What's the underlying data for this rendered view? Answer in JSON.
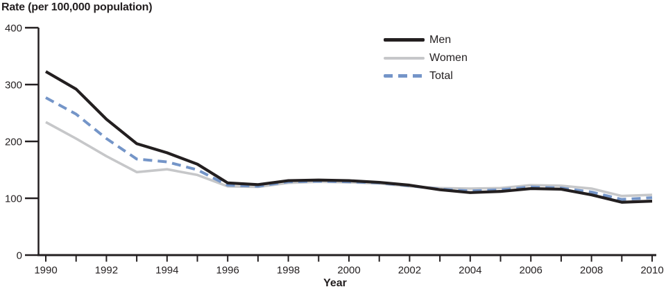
{
  "page": {
    "background_color": "#ffffff",
    "text_color": "#231f20",
    "axis_color": "#231f20"
  },
  "chart_data": {
    "type": "line",
    "title": "",
    "ylabel": "Rate (per 100,000 population)",
    "xlabel": "Year",
    "ylim": [
      0,
      400
    ],
    "yticks": [
      0,
      100,
      200,
      300,
      400
    ],
    "x": [
      1990,
      1991,
      1992,
      1993,
      1994,
      1995,
      1996,
      1997,
      1998,
      1999,
      2000,
      2001,
      2002,
      2003,
      2004,
      2005,
      2006,
      2007,
      2008,
      2009,
      2010
    ],
    "xtick_labels": [
      "1990",
      "1992",
      "1994",
      "1996",
      "1998",
      "2000",
      "2002",
      "2004",
      "2006",
      "2008",
      "2010"
    ],
    "grid": false,
    "legend": {
      "position": "inside-top-center-right",
      "entries": [
        "Men",
        "Women",
        "Total"
      ]
    },
    "series": [
      {
        "name": "Men",
        "color": "#231f20",
        "line_style": "solid",
        "values": [
          323,
          292,
          239,
          196,
          180,
          160,
          127,
          124,
          131,
          132,
          131,
          128,
          123,
          115,
          110,
          112,
          117,
          116,
          106,
          93,
          95
        ]
      },
      {
        "name": "Women",
        "color": "#c6c7c9",
        "line_style": "solid",
        "values": [
          234,
          205,
          174,
          146,
          151,
          141,
          121,
          120,
          127,
          129,
          128,
          126,
          121,
          118,
          117,
          118,
          123,
          122,
          117,
          104,
          106
        ]
      },
      {
        "name": "Total",
        "color": "#7495c8",
        "line_style": "dashed",
        "values": [
          277,
          248,
          205,
          169,
          164,
          150,
          123,
          121,
          129,
          130,
          129,
          127,
          122,
          116,
          113,
          115,
          120,
          118,
          111,
          98,
          101
        ]
      }
    ]
  }
}
